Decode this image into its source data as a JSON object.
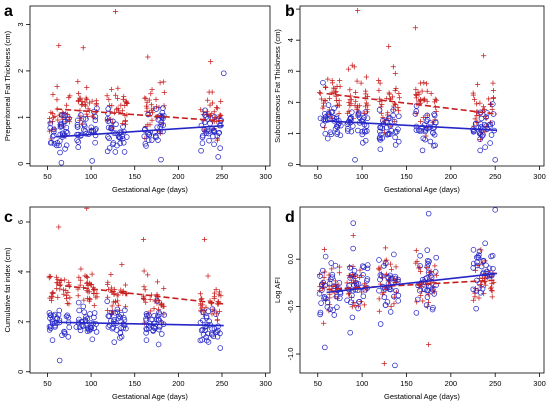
{
  "colors": {
    "red": "#c81e1e",
    "blue": "#2626c8",
    "axis": "#000000"
  },
  "chart_data": [
    {
      "panel": "a",
      "type": "scatter",
      "xlabel": "Gestational Age (days)",
      "ylabel": "Preperitoneal Fat Thickness (cm)",
      "xlim": [
        30,
        305
      ],
      "ylim": [
        -0.05,
        3.4
      ],
      "xticks": [
        50,
        100,
        150,
        200,
        250,
        300
      ],
      "yticks": [
        0,
        1,
        2,
        3
      ],
      "legend": "none",
      "grid": false,
      "series": [
        {
          "marker": "plus",
          "color": "red",
          "clusters": [
            [
              64,
              1.15,
              0.45
            ],
            [
              95,
              1.2,
              0.45
            ],
            [
              130,
              1.2,
              0.45
            ],
            [
              172,
              1.1,
              0.45
            ],
            [
              237,
              1.05,
              0.45
            ]
          ],
          "outliers": [
            [
              63,
              2.55
            ],
            [
              91,
              2.5
            ],
            [
              128,
              3.28
            ],
            [
              165,
              2.3
            ],
            [
              237,
              2.2
            ]
          ]
        },
        {
          "marker": "circle",
          "color": "blue",
          "clusters": [
            [
              64,
              0.65,
              0.4
            ],
            [
              95,
              0.7,
              0.4
            ],
            [
              130,
              0.7,
              0.4
            ],
            [
              172,
              0.75,
              0.4
            ],
            [
              237,
              0.75,
              0.4
            ]
          ],
          "outliers": [
            [
              66,
              0.02
            ],
            [
              252,
              1.95
            ]
          ]
        }
      ],
      "trend_lines": [
        {
          "series_marker": "plus",
          "style": "dashed",
          "color": "red",
          "x": [
            60,
            252
          ],
          "y": [
            1.18,
            0.92
          ]
        },
        {
          "series_marker": "circle",
          "style": "solid",
          "color": "blue",
          "x": [
            60,
            252
          ],
          "y": [
            0.58,
            0.82
          ]
        }
      ]
    },
    {
      "panel": "b",
      "type": "scatter",
      "xlabel": "Gestational Age (days)",
      "ylabel": "Subcutaneous Fat Thickness (cm)",
      "xlim": [
        30,
        305
      ],
      "ylim": [
        -0.05,
        5.1
      ],
      "xticks": [
        50,
        100,
        150,
        200,
        250,
        300
      ],
      "yticks": [
        0,
        1,
        2,
        3,
        4,
        5
      ],
      "legend": "none",
      "grid": false,
      "series": [
        {
          "marker": "plus",
          "color": "red",
          "clusters": [
            [
              64,
              2.2,
              0.7
            ],
            [
              95,
              2.15,
              0.7
            ],
            [
              130,
              2.0,
              0.7
            ],
            [
              172,
              1.95,
              0.7
            ],
            [
              237,
              1.75,
              0.7
            ]
          ],
          "outliers": [
            [
              95,
              4.95
            ],
            [
              160,
              4.4
            ],
            [
              130,
              3.8
            ],
            [
              237,
              3.5
            ]
          ]
        },
        {
          "marker": "circle",
          "color": "blue",
          "clusters": [
            [
              64,
              1.35,
              0.55
            ],
            [
              95,
              1.3,
              0.55
            ],
            [
              130,
              1.25,
              0.55
            ],
            [
              172,
              1.2,
              0.55
            ],
            [
              237,
              1.1,
              0.55
            ]
          ],
          "outliers": [
            [
              92,
              0.15
            ],
            [
              250,
              0.15
            ]
          ]
        }
      ],
      "trend_lines": [
        {
          "series_marker": "plus",
          "style": "dashed",
          "color": "red",
          "x": [
            60,
            252
          ],
          "y": [
            2.28,
            1.62
          ]
        },
        {
          "series_marker": "circle",
          "style": "solid",
          "color": "blue",
          "x": [
            60,
            252
          ],
          "y": [
            1.4,
            1.1
          ]
        }
      ]
    },
    {
      "panel": "c",
      "type": "scatter",
      "xlabel": "Gestational Age (days)",
      "ylabel": "Cumulative fat index (cm)",
      "xlim": [
        30,
        305
      ],
      "ylim": [
        -0.05,
        6.6
      ],
      "xticks": [
        50,
        100,
        150,
        200,
        250,
        300
      ],
      "yticks": [
        0,
        2,
        4,
        6
      ],
      "legend": "none",
      "grid": false,
      "series": [
        {
          "marker": "plus",
          "color": "red",
          "clusters": [
            [
              64,
              3.4,
              0.8
            ],
            [
              95,
              3.3,
              0.8
            ],
            [
              130,
              3.1,
              0.8
            ],
            [
              172,
              2.95,
              0.8
            ],
            [
              237,
              2.8,
              0.8
            ]
          ],
          "outliers": [
            [
              95,
              6.55
            ],
            [
              63,
              5.8
            ],
            [
              160,
              5.3
            ],
            [
              230,
              5.3
            ]
          ]
        },
        {
          "marker": "circle",
          "color": "blue",
          "clusters": [
            [
              64,
              2.0,
              0.6
            ],
            [
              95,
              1.95,
              0.6
            ],
            [
              130,
              1.95,
              0.6
            ],
            [
              172,
              1.9,
              0.6
            ],
            [
              237,
              1.85,
              0.6
            ]
          ],
          "outliers": [
            [
              64,
              0.45
            ],
            [
              248,
              0.95
            ]
          ]
        }
      ],
      "trend_lines": [
        {
          "series_marker": "plus",
          "style": "dashed",
          "color": "red",
          "x": [
            60,
            252
          ],
          "y": [
            3.48,
            2.72
          ]
        },
        {
          "series_marker": "circle",
          "style": "solid",
          "color": "blue",
          "x": [
            60,
            252
          ],
          "y": [
            1.98,
            1.85
          ]
        }
      ]
    },
    {
      "panel": "d",
      "type": "scatter",
      "xlabel": "Gestational Age (days)",
      "ylabel": "Log AFI",
      "xlim": [
        30,
        305
      ],
      "ylim": [
        -1.2,
        0.55
      ],
      "xticks": [
        50,
        100,
        150,
        200,
        250,
        300
      ],
      "yticks": [
        -1.0,
        -0.5,
        0.0
      ],
      "ytick_labels": [
        "-1.0",
        "-0.5",
        "0.0"
      ],
      "legend": "none",
      "grid": false,
      "series": [
        {
          "marker": "plus",
          "color": "red",
          "clusters": [
            [
              64,
              -0.3,
              0.25
            ],
            [
              95,
              -0.28,
              0.25
            ],
            [
              130,
              -0.25,
              0.25
            ],
            [
              172,
              -0.22,
              0.25
            ],
            [
              237,
              -0.22,
              0.25
            ]
          ],
          "outliers": [
            [
              125,
              -1.1
            ],
            [
              175,
              -0.9
            ],
            [
              90,
              0.25
            ]
          ]
        },
        {
          "marker": "circle",
          "color": "blue",
          "clusters": [
            [
              64,
              -0.35,
              0.28
            ],
            [
              95,
              -0.32,
              0.28
            ],
            [
              130,
              -0.28,
              0.28
            ],
            [
              172,
              -0.22,
              0.28
            ],
            [
              237,
              -0.15,
              0.28
            ]
          ],
          "outliers": [
            [
              137,
              -1.12
            ],
            [
              58,
              -0.93
            ],
            [
              175,
              0.48
            ],
            [
              250,
              0.52
            ],
            [
              90,
              0.38
            ]
          ]
        }
      ],
      "trend_lines": [
        {
          "series_marker": "plus",
          "style": "dashed",
          "color": "red",
          "x": [
            60,
            252
          ],
          "y": [
            -0.32,
            -0.22
          ]
        },
        {
          "series_marker": "circle",
          "style": "solid",
          "color": "blue",
          "x": [
            60,
            252
          ],
          "y": [
            -0.35,
            -0.15
          ]
        }
      ]
    }
  ]
}
